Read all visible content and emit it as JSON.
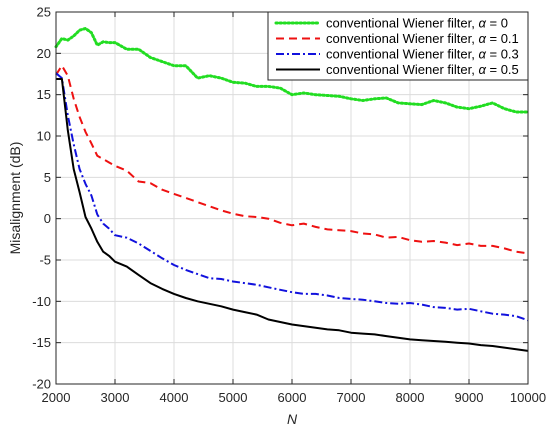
{
  "chart_data": {
    "type": "line",
    "xlabel": "N",
    "ylabel": "Misalignment (dB)",
    "xlim": [
      2000,
      10000
    ],
    "ylim": [
      -20,
      25
    ],
    "xticks": [
      2000,
      3000,
      4000,
      5000,
      6000,
      7000,
      8000,
      9000,
      10000
    ],
    "yticks": [
      -20,
      -15,
      -10,
      -5,
      0,
      5,
      10,
      15,
      20,
      25
    ],
    "xtick_labels": [
      "2000",
      "3000",
      "4000",
      "5000",
      "6000",
      "7000",
      "8000",
      "9000",
      "10000"
    ],
    "ytick_labels": [
      "-20",
      "-15",
      "-10",
      "-5",
      "0",
      "5",
      "10",
      "15",
      "20",
      "25"
    ],
    "grid": true,
    "legend_position": "top-right",
    "series": [
      {
        "name": "conventional Wiener filter, α = 0",
        "legend_prefix": "conventional Wiener filter, ",
        "legend_symbol": "α",
        "legend_suffix": " = 0",
        "color": "#22dd22",
        "style": "dotted",
        "x": [
          2000,
          2100,
          2200,
          2300,
          2400,
          2500,
          2600,
          2700,
          2800,
          2900,
          3000,
          3200,
          3400,
          3600,
          3800,
          4000,
          4200,
          4400,
          4600,
          4800,
          5000,
          5200,
          5400,
          5600,
          5800,
          6000,
          6200,
          6400,
          6600,
          6800,
          7000,
          7200,
          7400,
          7600,
          7800,
          8000,
          8200,
          8400,
          8600,
          8800,
          9000,
          9200,
          9400,
          9600,
          9800,
          10000
        ],
        "y": [
          20.8,
          21.8,
          21.6,
          22.1,
          22.8,
          23.0,
          22.5,
          21.0,
          21.4,
          21.3,
          21.3,
          20.5,
          20.5,
          19.5,
          19.0,
          18.5,
          18.5,
          17.0,
          17.3,
          17.0,
          16.5,
          16.4,
          16.0,
          16.0,
          15.8,
          15.0,
          15.2,
          15.0,
          14.9,
          14.8,
          14.5,
          14.3,
          14.5,
          14.6,
          14.0,
          13.9,
          13.8,
          14.3,
          14.0,
          13.5,
          13.3,
          13.6,
          14.0,
          13.3,
          12.9,
          12.9
        ]
      },
      {
        "name": "conventional Wiener filter, α = 0.1",
        "legend_prefix": "conventional Wiener filter, ",
        "legend_symbol": "α",
        "legend_suffix": " = 0.1",
        "color": "#ee1111",
        "style": "dashed",
        "x": [
          2000,
          2100,
          2200,
          2300,
          2400,
          2500,
          2600,
          2700,
          2800,
          2900,
          3000,
          3200,
          3400,
          3600,
          3800,
          4000,
          4200,
          4400,
          4600,
          4800,
          5000,
          5200,
          5400,
          5600,
          5800,
          6000,
          6200,
          6400,
          6600,
          6800,
          7000,
          7200,
          7400,
          7600,
          7800,
          8000,
          8200,
          8400,
          8600,
          8800,
          9000,
          9200,
          9400,
          9600,
          9800,
          10000
        ],
        "y": [
          17.4,
          18.5,
          17.3,
          14.5,
          12.3,
          10.5,
          9.1,
          7.6,
          7.2,
          6.8,
          6.4,
          5.8,
          4.5,
          4.3,
          3.5,
          3.0,
          2.5,
          2.0,
          1.5,
          1.0,
          0.6,
          0.3,
          0.2,
          0.0,
          -0.5,
          -0.8,
          -0.6,
          -1.0,
          -1.3,
          -1.4,
          -1.5,
          -1.8,
          -1.9,
          -2.3,
          -2.2,
          -2.6,
          -2.8,
          -2.7,
          -2.9,
          -3.2,
          -3.0,
          -3.3,
          -3.3,
          -3.6,
          -4.0,
          -4.2
        ]
      },
      {
        "name": "conventional Wiener filter, α = 0.3",
        "legend_prefix": "conventional Wiener filter, ",
        "legend_symbol": "α",
        "legend_suffix": " = 0.3",
        "color": "#1111dd",
        "style": "dashdot",
        "x": [
          2000,
          2100,
          2200,
          2300,
          2400,
          2500,
          2600,
          2700,
          2800,
          2900,
          3000,
          3200,
          3400,
          3600,
          3800,
          4000,
          4200,
          4400,
          4600,
          4800,
          5000,
          5200,
          5400,
          5600,
          5800,
          6000,
          6200,
          6400,
          6600,
          6800,
          7000,
          7200,
          7400,
          7600,
          7800,
          8000,
          8200,
          8400,
          8600,
          8800,
          9000,
          9200,
          9400,
          9600,
          9800,
          10000
        ],
        "y": [
          17.6,
          17.0,
          12.5,
          9.0,
          6.0,
          4.2,
          2.8,
          0.5,
          -0.6,
          -1.2,
          -2.0,
          -2.3,
          -3.0,
          -3.9,
          -4.8,
          -5.6,
          -6.2,
          -6.7,
          -7.2,
          -7.3,
          -7.6,
          -7.8,
          -8.0,
          -8.3,
          -8.6,
          -8.9,
          -9.1,
          -9.1,
          -9.3,
          -9.6,
          -9.7,
          -9.8,
          -10.0,
          -10.2,
          -10.3,
          -10.2,
          -10.4,
          -10.7,
          -10.8,
          -11.0,
          -10.9,
          -11.2,
          -11.5,
          -11.6,
          -11.8,
          -12.3
        ]
      },
      {
        "name": "conventional Wiener filter, α = 0.5",
        "legend_prefix": "conventional Wiener filter, ",
        "legend_symbol": "α",
        "legend_suffix": " = 0.5",
        "color": "#000000",
        "style": "solid",
        "x": [
          2000,
          2100,
          2200,
          2300,
          2400,
          2500,
          2600,
          2700,
          2800,
          2900,
          3000,
          3200,
          3400,
          3600,
          3800,
          4000,
          4200,
          4400,
          4600,
          4800,
          5000,
          5200,
          5400,
          5600,
          5800,
          6000,
          6200,
          6400,
          6600,
          6800,
          7000,
          7200,
          7400,
          7600,
          7800,
          8000,
          8200,
          8400,
          8600,
          8800,
          9000,
          9200,
          9400,
          9600,
          9800,
          10000
        ],
        "y": [
          16.9,
          16.9,
          10.7,
          6.0,
          3.2,
          0.2,
          -1.2,
          -2.8,
          -4.0,
          -4.5,
          -5.2,
          -5.8,
          -6.8,
          -7.8,
          -8.5,
          -9.1,
          -9.6,
          -10.0,
          -10.3,
          -10.6,
          -11.0,
          -11.3,
          -11.6,
          -12.2,
          -12.5,
          -12.8,
          -13.0,
          -13.2,
          -13.4,
          -13.5,
          -13.8,
          -13.9,
          -14.0,
          -14.2,
          -14.4,
          -14.6,
          -14.7,
          -14.8,
          -14.9,
          -15.0,
          -15.1,
          -15.3,
          -15.4,
          -15.6,
          -15.8,
          -16.0
        ]
      }
    ]
  }
}
